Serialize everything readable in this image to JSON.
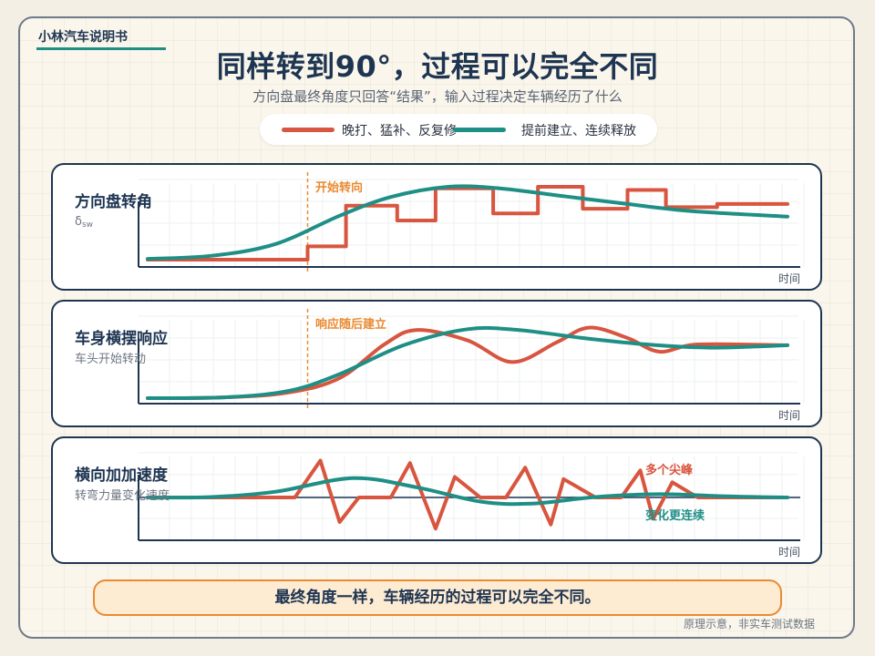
{
  "header": {
    "brand": "小林汽车说明书",
    "title": "同样转到90°，过程可以完全不同",
    "subtitle": "方向盘最终角度只回答“结果”，输入过程决定车辆经历了什么"
  },
  "legend": [
    {
      "label": "晚打、猛补、反复修",
      "color": "#d8553f"
    },
    {
      "label": "提前建立、连续释放",
      "color": "#1f8f86"
    }
  ],
  "panels": [
    {
      "title": "方向盘转角",
      "subtitle_main": "δ",
      "subtitle_sub": "sw",
      "annotation": "开始转向",
      "time_label": "时间"
    },
    {
      "title": "车身横摆响应",
      "subtitle": "车头开始转动",
      "annotation": "响应随后建立",
      "time_label": "时间"
    },
    {
      "title": "横向加加速度",
      "subtitle": "转弯力量变化速度",
      "annotation_red": "多个尖峰",
      "annotation_teal": "变化更连续",
      "time_label": "时间"
    }
  ],
  "conclusion": "最终角度一样，车辆经历的过程可以完全不同。",
  "footnote": "原理示意，非实车测试数据",
  "colors": {
    "red": "#d8553f",
    "teal": "#1f8f86",
    "navy": "#1e3552",
    "orange": "#ea8a32"
  },
  "chart_data": [
    {
      "type": "line",
      "title": "方向盘转角",
      "xlabel": "时间",
      "ylim": [
        0,
        1
      ],
      "marker_x": 0.25,
      "series": [
        {
          "name": "晚打、猛补、反复修",
          "style": "step",
          "points": [
            [
              0,
              0
            ],
            [
              0.25,
              0
            ],
            [
              0.25,
              0.17
            ],
            [
              0.31,
              0.17
            ],
            [
              0.31,
              0.69
            ],
            [
              0.39,
              0.69
            ],
            [
              0.39,
              0.5
            ],
            [
              0.45,
              0.5
            ],
            [
              0.45,
              0.91
            ],
            [
              0.54,
              0.91
            ],
            [
              0.54,
              0.59
            ],
            [
              0.61,
              0.59
            ],
            [
              0.61,
              0.93
            ],
            [
              0.68,
              0.93
            ],
            [
              0.68,
              0.65
            ],
            [
              0.75,
              0.65
            ],
            [
              0.75,
              0.89
            ],
            [
              0.81,
              0.89
            ],
            [
              0.81,
              0.67
            ],
            [
              0.89,
              0.67
            ],
            [
              0.89,
              0.71
            ],
            [
              1,
              0.71
            ]
          ]
        },
        {
          "name": "提前建立、连续释放",
          "style": "smooth",
          "points": [
            [
              0,
              0.01
            ],
            [
              0.1,
              0.05
            ],
            [
              0.2,
              0.2
            ],
            [
              0.3,
              0.56
            ],
            [
              0.38,
              0.8
            ],
            [
              0.47,
              0.93
            ],
            [
              0.55,
              0.91
            ],
            [
              0.65,
              0.81
            ],
            [
              0.75,
              0.71
            ],
            [
              0.85,
              0.62
            ],
            [
              1,
              0.55
            ]
          ]
        }
      ]
    },
    {
      "type": "line",
      "title": "车身横摆响应",
      "xlabel": "时间",
      "ylim": [
        0,
        1
      ],
      "marker_x": 0.25,
      "series": [
        {
          "name": "晚打、猛补、反复修",
          "style": "smooth",
          "points": [
            [
              0,
              0
            ],
            [
              0.12,
              0.01
            ],
            [
              0.22,
              0.07
            ],
            [
              0.3,
              0.25
            ],
            [
              0.37,
              0.67
            ],
            [
              0.42,
              0.85
            ],
            [
              0.5,
              0.72
            ],
            [
              0.57,
              0.45
            ],
            [
              0.64,
              0.7
            ],
            [
              0.69,
              0.88
            ],
            [
              0.75,
              0.75
            ],
            [
              0.8,
              0.58
            ],
            [
              0.86,
              0.67
            ],
            [
              1,
              0.66
            ]
          ]
        },
        {
          "name": "提前建立、连续释放",
          "style": "smooth",
          "points": [
            [
              0,
              0
            ],
            [
              0.12,
              0.01
            ],
            [
              0.22,
              0.09
            ],
            [
              0.3,
              0.3
            ],
            [
              0.4,
              0.66
            ],
            [
              0.5,
              0.86
            ],
            [
              0.58,
              0.85
            ],
            [
              0.68,
              0.75
            ],
            [
              0.78,
              0.67
            ],
            [
              0.88,
              0.63
            ],
            [
              1,
              0.66
            ]
          ]
        }
      ]
    },
    {
      "type": "line",
      "title": "横向加加速度",
      "xlabel": "时间",
      "ylim": [
        -1,
        1
      ],
      "series": [
        {
          "name": "晚打、猛补、反复修",
          "style": "polyline",
          "points": [
            [
              0,
              0
            ],
            [
              0.23,
              0
            ],
            [
              0.27,
              0.9
            ],
            [
              0.3,
              -0.6
            ],
            [
              0.33,
              0
            ],
            [
              0.38,
              0
            ],
            [
              0.41,
              0.84
            ],
            [
              0.45,
              -0.76
            ],
            [
              0.48,
              0.5
            ],
            [
              0.52,
              0
            ],
            [
              0.56,
              0
            ],
            [
              0.59,
              0.73
            ],
            [
              0.63,
              -0.66
            ],
            [
              0.65,
              0.45
            ],
            [
              0.7,
              0
            ],
            [
              0.74,
              0
            ],
            [
              0.77,
              0.66
            ],
            [
              0.79,
              -0.52
            ],
            [
              0.82,
              0.37
            ],
            [
              0.86,
              0
            ],
            [
              1,
              0
            ]
          ]
        },
        {
          "name": "提前建立、连续释放",
          "style": "smooth",
          "points": [
            [
              0,
              0
            ],
            [
              0.1,
              0.01
            ],
            [
              0.2,
              0.14
            ],
            [
              0.32,
              0.47
            ],
            [
              0.42,
              0.25
            ],
            [
              0.52,
              -0.1
            ],
            [
              0.6,
              -0.15
            ],
            [
              0.7,
              0.01
            ],
            [
              0.8,
              0.08
            ],
            [
              0.9,
              0.03
            ],
            [
              1,
              0
            ]
          ]
        }
      ]
    }
  ]
}
